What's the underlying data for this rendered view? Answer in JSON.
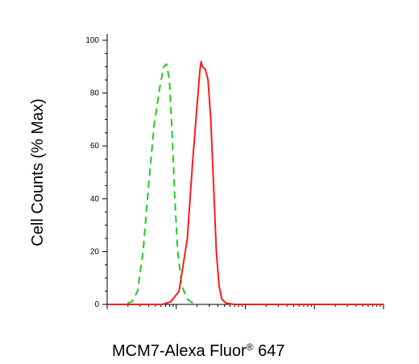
{
  "chart_data": {
    "type": "line",
    "title": "",
    "xlabel": "MCM7-Alexa Fluor",
    "xlabel_superscript": "®",
    "xlabel_suffix": " 647",
    "ylabel": "Cell Counts (% Max)",
    "y_ticks": [
      "0",
      "20",
      "40",
      "60",
      "80",
      "100"
    ],
    "ylim": [
      0,
      100
    ],
    "x_scale": "log",
    "xlim": [
      0,
      1
    ],
    "grid": false,
    "legend": "none",
    "series": [
      {
        "style": "dashed",
        "color": "#22cc22",
        "x": [
          0.03,
          0.06,
          0.09,
          0.11,
          0.13,
          0.15,
          0.17,
          0.19,
          0.205,
          0.215,
          0.225,
          0.235,
          0.245,
          0.255,
          0.27,
          0.29,
          0.31,
          0.33
        ],
        "y": [
          0,
          0,
          1,
          5,
          20,
          45,
          68,
          82,
          90,
          91,
          85,
          65,
          40,
          20,
          7,
          2,
          0.5,
          0
        ]
      },
      {
        "style": "solid",
        "color": "#ff1a1a",
        "x": [
          0.0,
          0.15,
          0.2,
          0.23,
          0.26,
          0.29,
          0.31,
          0.325,
          0.335,
          0.34,
          0.345,
          0.355,
          0.365,
          0.375,
          0.385,
          0.395,
          0.405,
          0.415,
          0.43,
          0.46,
          0.5,
          1.0
        ],
        "y": [
          0,
          0,
          0,
          1,
          5,
          25,
          55,
          75,
          88,
          92,
          90,
          89,
          85,
          70,
          45,
          20,
          7,
          2,
          0.5,
          0,
          0,
          0
        ]
      }
    ]
  }
}
